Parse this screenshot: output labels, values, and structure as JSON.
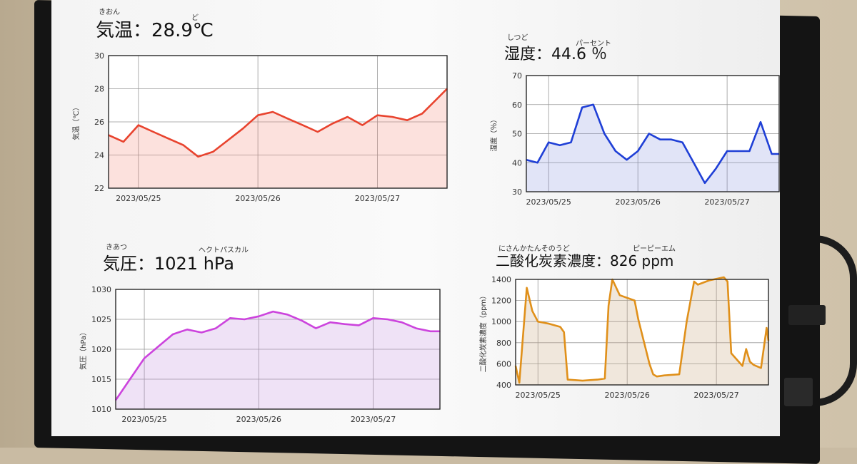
{
  "panels": [
    {
      "title": "気温：28.9℃",
      "ruby": [
        "きおん",
        "ど"
      ],
      "color": "#e8432e",
      "fill": "rgba(240,120,100,0.22)",
      "chart_data": {
        "type": "area",
        "title": "",
        "xlabel": "",
        "ylabel": "気温（℃）",
        "ylim": [
          22,
          30
        ],
        "yticks": [
          22,
          24,
          26,
          28,
          30
        ],
        "xlim": [
          "2023-05-24 18:00",
          "2023-05-27 14:00"
        ],
        "xticks": [
          "2023/05/25",
          "2023/05/26",
          "2023/05/27"
        ],
        "grid": true,
        "series": [
          {
            "x": [
              "05-24 18:00",
              "05-24 21:00",
              "05-25 00:00",
              "05-25 03:00",
              "05-25 06:00",
              "05-25 09:00",
              "05-25 12:00",
              "05-25 15:00",
              "05-25 18:00",
              "05-25 21:00",
              "05-26 00:00",
              "05-26 03:00",
              "05-26 06:00",
              "05-26 09:00",
              "05-26 12:00",
              "05-26 15:00",
              "05-26 18:00",
              "05-26 21:00",
              "05-27 00:00",
              "05-27 03:00",
              "05-27 06:00",
              "05-27 09:00",
              "05-27 12:00",
              "05-27 14:00"
            ],
            "y": [
              25.2,
              24.8,
              25.8,
              25.4,
              25.0,
              24.6,
              23.9,
              24.2,
              24.9,
              25.6,
              26.4,
              26.6,
              26.2,
              25.8,
              25.4,
              25.9,
              26.3,
              25.8,
              26.4,
              26.3,
              26.1,
              26.5,
              27.4,
              28.0
            ]
          }
        ]
      }
    },
    {
      "title": "湿度：44.6 ％",
      "ruby": [
        "しつど",
        "パーセント"
      ],
      "color": "#1f3fd6",
      "fill": "rgba(120,130,220,0.22)",
      "chart_data": {
        "type": "area",
        "title": "",
        "xlabel": "",
        "ylabel": "湿度（％）",
        "ylim": [
          30,
          70
        ],
        "yticks": [
          30,
          40,
          50,
          60,
          70
        ],
        "xlim": [
          "2023-05-24 18:00",
          "2023-05-27 14:00"
        ],
        "xticks": [
          "2023/05/25",
          "2023/05/26",
          "2023/05/27"
        ],
        "grid": true,
        "series": [
          {
            "x": [
              "05-24 18:00",
              "05-24 21:00",
              "05-25 00:00",
              "05-25 03:00",
              "05-25 06:00",
              "05-25 09:00",
              "05-25 12:00",
              "05-25 15:00",
              "05-25 18:00",
              "05-25 21:00",
              "05-26 00:00",
              "05-26 03:00",
              "05-26 06:00",
              "05-26 09:00",
              "05-26 12:00",
              "05-26 15:00",
              "05-26 18:00",
              "05-26 21:00",
              "05-27 00:00",
              "05-27 03:00",
              "05-27 06:00",
              "05-27 09:00",
              "05-27 12:00",
              "05-27 14:00"
            ],
            "y": [
              41,
              40,
              47,
              46,
              47,
              59,
              60,
              50,
              44,
              41,
              44,
              50,
              48,
              48,
              47,
              40,
              33,
              38,
              44,
              44,
              44,
              54,
              43,
              43
            ]
          }
        ]
      }
    },
    {
      "title": "気圧：1021 hPa",
      "ruby": [
        "きあつ",
        "ヘクトパスカル"
      ],
      "color": "#cc44dd",
      "fill": "rgba(190,140,220,0.25)",
      "chart_data": {
        "type": "area",
        "title": "",
        "xlabel": "",
        "ylabel": "気圧（hPa）",
        "ylim": [
          1010,
          1030
        ],
        "yticks": [
          1010,
          1015,
          1020,
          1025,
          1030
        ],
        "xlim": [
          "2023-05-24 18:00",
          "2023-05-27 14:00"
        ],
        "xticks": [
          "2023/05/25",
          "2023/05/26",
          "2023/05/27"
        ],
        "grid": true,
        "series": [
          {
            "x": [
              "05-24 18:00",
              "05-24 21:00",
              "05-25 00:00",
              "05-25 03:00",
              "05-25 06:00",
              "05-25 09:00",
              "05-25 12:00",
              "05-25 15:00",
              "05-25 18:00",
              "05-25 21:00",
              "05-26 00:00",
              "05-26 03:00",
              "05-26 06:00",
              "05-26 09:00",
              "05-26 12:00",
              "05-26 15:00",
              "05-26 18:00",
              "05-26 21:00",
              "05-27 00:00",
              "05-27 03:00",
              "05-27 06:00",
              "05-27 09:00",
              "05-27 12:00",
              "05-27 14:00"
            ],
            "y": [
              1011.5,
              1015,
              1018.5,
              1020.5,
              1022.5,
              1023.3,
              1022.8,
              1023.5,
              1025.2,
              1025.0,
              1025.5,
              1026.3,
              1025.8,
              1024.8,
              1023.5,
              1024.5,
              1024.2,
              1024.0,
              1025.2,
              1025.0,
              1024.5,
              1023.5,
              1023.0,
              1023.0
            ]
          }
        ]
      }
    },
    {
      "title": "二酸化炭素濃度：826 ppm",
      "ruby": [
        "にさんかたんそのうど",
        "ピーピーエム"
      ],
      "color": "#e0901a",
      "fill": "rgba(200,170,130,0.28)",
      "chart_data": {
        "type": "area",
        "title": "",
        "xlabel": "",
        "ylabel": "二酸化炭素濃度（ppm）",
        "ylim": [
          400,
          1400
        ],
        "yticks": [
          400,
          600,
          800,
          1000,
          1200,
          1400
        ],
        "xlim": [
          "2023-05-24 18:00",
          "2023-05-27 14:00"
        ],
        "xticks": [
          "2023/05/25",
          "2023/05/26",
          "2023/05/27"
        ],
        "grid": true,
        "series": [
          {
            "x": [
              "05-24 18:00",
              "05-24 19:00",
              "05-24 21:00",
              "05-24 22:30",
              "05-25 00:00",
              "05-25 03:00",
              "05-25 06:00",
              "05-25 07:00",
              "05-25 08:00",
              "05-25 12:00",
              "05-25 16:00",
              "05-25 18:00",
              "05-25 19:00",
              "05-25 20:00",
              "05-25 22:00",
              "05-26 02:00",
              "05-26 03:00",
              "05-26 06:00",
              "05-26 07:00",
              "05-26 08:00",
              "05-26 10:00",
              "05-26 14:00",
              "05-26 16:00",
              "05-26 18:00",
              "05-26 19:00",
              "05-26 22:00",
              "05-27 02:00",
              "05-27 03:00",
              "05-27 04:00",
              "05-27 07:00",
              "05-27 08:00",
              "05-27 09:00",
              "05-27 10:00",
              "05-27 12:00",
              "05-27 13:30",
              "05-27 14:00"
            ],
            "y": [
              580,
              420,
              1320,
              1100,
              1000,
              980,
              950,
              900,
              450,
              440,
              450,
              460,
              1150,
              1400,
              1250,
              1200,
              1020,
              600,
              500,
              480,
              490,
              500,
              1000,
              1380,
              1350,
              1390,
              1420,
              1380,
              700,
              580,
              740,
              620,
              590,
              560,
              940,
              820
            ]
          }
        ]
      }
    }
  ]
}
